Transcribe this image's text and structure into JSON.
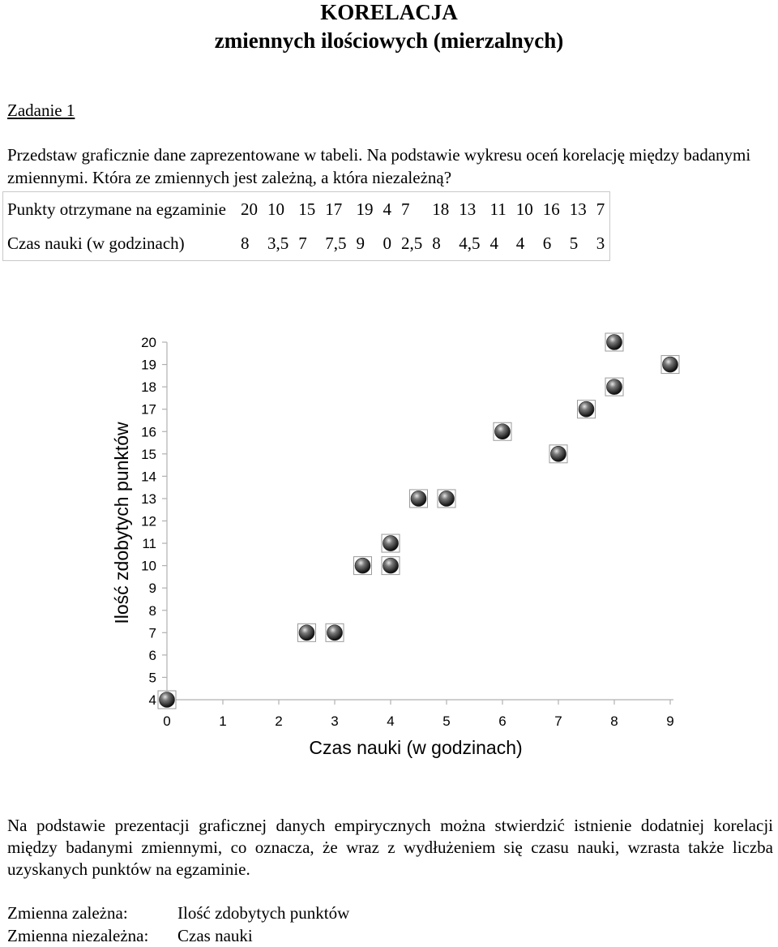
{
  "header": {
    "title": "KORELACJA",
    "subtitle": "zmiennych  ilościowych (mierzalnych)"
  },
  "task": {
    "label": "Zadanie 1",
    "instruction": "Przedstaw graficznie dane zaprezentowane w tabeli. Na podstawie wykresu oceń korelację między badanymi zmiennymi. Która ze zmiennych jest zależną, a która niezależną?"
  },
  "table": {
    "rows": [
      {
        "header": "Punkty otrzymane na egzaminie",
        "values": [
          "20",
          "10",
          "15",
          "17",
          "19",
          "4",
          "7",
          "18",
          "13",
          "11",
          "10",
          "16",
          "13",
          "7"
        ]
      },
      {
        "header": "Czas nauki (w godzinach)",
        "values": [
          "8",
          "3,5",
          "7",
          "7,5",
          "9",
          "0",
          "2,5",
          "8",
          "4,5",
          "4",
          "4",
          "6",
          "5",
          "3"
        ]
      }
    ]
  },
  "chart_data": {
    "type": "scatter",
    "xlabel": "Czas nauki (w godzinach)",
    "ylabel": "Ilość zdobytych punktów",
    "xlim": [
      0,
      9
    ],
    "ylim": [
      4,
      20
    ],
    "x_ticks": [
      "0",
      "1",
      "2",
      "3",
      "4",
      "5",
      "6",
      "7",
      "8",
      "9"
    ],
    "y_ticks": [
      "20",
      "19",
      "18",
      "17",
      "16",
      "15",
      "14",
      "13",
      "12",
      "11",
      "10",
      "9",
      "8",
      "7",
      "6",
      "5",
      "4"
    ],
    "points": [
      {
        "x": 8,
        "y": 20
      },
      {
        "x": 3.5,
        "y": 10
      },
      {
        "x": 7,
        "y": 15
      },
      {
        "x": 7.5,
        "y": 17
      },
      {
        "x": 9,
        "y": 19
      },
      {
        "x": 0,
        "y": 4
      },
      {
        "x": 2.5,
        "y": 7
      },
      {
        "x": 8,
        "y": 18
      },
      {
        "x": 4.5,
        "y": 13
      },
      {
        "x": 4,
        "y": 11
      },
      {
        "x": 4,
        "y": 10
      },
      {
        "x": 6,
        "y": 16
      },
      {
        "x": 5,
        "y": 13
      },
      {
        "x": 3,
        "y": 7
      }
    ],
    "marker_color": "#1a1a1a"
  },
  "conclusion": "Na podstawie prezentacji graficznej danych empirycznych można stwierdzić istnienie dodatniej korelacji między badanymi zmiennymi, co oznacza, że wraz z wydłużeniem się czasu nauki, wzrasta także liczba uzyskanych punktów na egzaminie.",
  "variables": {
    "dependent_label": "Zmienna zależna:",
    "dependent_value": "Ilość zdobytych punktów",
    "independent_label": "Zmienna niezależna:",
    "independent_value": "Czas nauki"
  }
}
